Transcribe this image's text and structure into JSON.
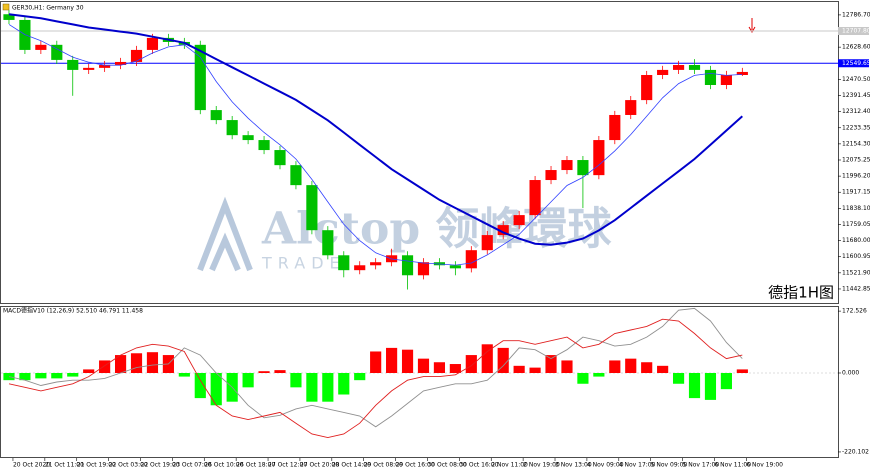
{
  "chart_data": [
    {
      "type": "candlestick",
      "title": "GER30,H1: Germany 30",
      "annotation": "德指1H图",
      "annotation_color": "#e00000",
      "watermark": [
        "Alctop 领峰環球",
        "TRADE"
      ],
      "up_color": "#ff0000",
      "down_color": "#00c000",
      "x": [
        2,
        6,
        10,
        14,
        18,
        22,
        26,
        30,
        34,
        38,
        42,
        46,
        50,
        54,
        58,
        62,
        66,
        70,
        74,
        78,
        82,
        86,
        90,
        94,
        98,
        102,
        106,
        110,
        114,
        118,
        122,
        126,
        130,
        134,
        138,
        142,
        146,
        150,
        154,
        158,
        162,
        166,
        170,
        174,
        178,
        182,
        186
      ],
      "open": [
        12790,
        12762,
        12615,
        12640,
        12566,
        12517,
        12527,
        12541,
        12556,
        12615,
        12674,
        12654,
        12640,
        12320,
        12271,
        12197,
        12173,
        12124,
        12050,
        11952,
        11731,
        11608,
        11535,
        11559,
        11574,
        11608,
        11510,
        11574,
        11559,
        11544,
        11633,
        11707,
        11756,
        11805,
        11977,
        12026,
        12075,
        12001,
        12173,
        12296,
        12369,
        12492,
        12517,
        12541,
        12517,
        12443,
        12492
      ],
      "high": [
        12810,
        12782,
        12660,
        12660,
        12586,
        12547,
        12561,
        12576,
        12635,
        12694,
        12694,
        12674,
        12660,
        12340,
        12291,
        12217,
        12193,
        12144,
        12070,
        11972,
        11751,
        11628,
        11579,
        11594,
        11640,
        11628,
        11594,
        11594,
        11579,
        11653,
        11727,
        11776,
        11825,
        11997,
        12046,
        12095,
        12095,
        12193,
        12316,
        12389,
        12512,
        12537,
        12561,
        12570,
        12537,
        12512,
        12527
      ],
      "low": [
        12742,
        12595,
        12595,
        12546,
        12390,
        12497,
        12507,
        12521,
        12536,
        12595,
        12634,
        12620,
        12300,
        12251,
        12177,
        12153,
        12104,
        12030,
        11932,
        11711,
        11588,
        11500,
        11515,
        11539,
        11554,
        11440,
        11490,
        11539,
        11510,
        11524,
        11613,
        11687,
        11736,
        11785,
        11957,
        12006,
        11840,
        11981,
        12153,
        12276,
        12349,
        12472,
        12497,
        12497,
        12423,
        12423,
        12487
      ],
      "close": [
        12762,
        12615,
        12640,
        12566,
        12517,
        12527,
        12541,
        12556,
        12615,
        12674,
        12654,
        12640,
        12320,
        12271,
        12197,
        12173,
        12124,
        12050,
        11952,
        11731,
        11608,
        11535,
        11559,
        11574,
        11608,
        11510,
        11574,
        11559,
        11544,
        11633,
        11707,
        11756,
        11805,
        11977,
        12026,
        12075,
        12001,
        12173,
        12296,
        12369,
        12492,
        12517,
        12541,
        12517,
        12443,
        12492,
        12507
      ],
      "ma_lines": [
        {
          "color": "#3040ff",
          "width": 0.8,
          "values": [
            12740,
            12690,
            12660,
            12620,
            12580,
            12555,
            12540,
            12540,
            12560,
            12600,
            12630,
            12640,
            12580,
            12460,
            12360,
            12280,
            12210,
            12150,
            12080,
            11980,
            11870,
            11760,
            11680,
            11620,
            11590,
            11580,
            11570,
            11565,
            11560,
            11570,
            11610,
            11660,
            11710,
            11790,
            11870,
            11950,
            11990,
            12050,
            12120,
            12200,
            12290,
            12380,
            12450,
            12490,
            12500,
            12490,
            12495
          ]
        },
        {
          "color": "#0000cc",
          "width": 2,
          "values": [
            12790,
            12780,
            12770,
            12755,
            12740,
            12725,
            12715,
            12705,
            12695,
            12680,
            12665,
            12650,
            12610,
            12570,
            12530,
            12490,
            12450,
            12410,
            12370,
            12320,
            12270,
            12210,
            12150,
            12090,
            12030,
            11980,
            11930,
            11880,
            11840,
            11800,
            11760,
            11720,
            11690,
            11665,
            11660,
            11670,
            11690,
            11730,
            11780,
            11840,
            11900,
            11960,
            12020,
            12080,
            12150,
            12220,
            12290
          ]
        }
      ],
      "hlines": [
        {
          "value": 12707.8,
          "label": "12707.80",
          "color": "#c8c8c8"
        },
        {
          "value": 12549.65,
          "label": "12549.65",
          "color": "#0000ff"
        }
      ],
      "xlim": [
        0,
        210
      ],
      "ylim": [
        11374,
        12850
      ],
      "xticks": [
        {
          "value": 3,
          "label": "20 Oct 2020"
        },
        {
          "value": 11,
          "label": "21 Oct 11:00"
        },
        {
          "value": 19,
          "label": "21 Oct 19:00"
        },
        {
          "value": 27,
          "label": "22 Oct 03:00"
        },
        {
          "value": 35,
          "label": "22 Oct 19:00"
        },
        {
          "value": 43,
          "label": "23 Oct 07:00"
        },
        {
          "value": 51,
          "label": "26 Oct 10:00"
        },
        {
          "value": 59,
          "label": "26 Oct 18:00"
        },
        {
          "value": 67,
          "label": "27 Oct 12:00"
        },
        {
          "value": 75,
          "label": "27 Oct 20:00"
        },
        {
          "value": 83,
          "label": "28 Oct 14:00"
        },
        {
          "value": 91,
          "label": "29 Oct 08:00"
        },
        {
          "value": 99,
          "label": "29 Oct 16:00"
        },
        {
          "value": 107,
          "label": "30 Oct 08:00"
        },
        {
          "value": 115,
          "label": "30 Oct 16:00"
        },
        {
          "value": 123,
          "label": "2 Nov 11:00"
        },
        {
          "value": 131,
          "label": "2 Nov 19:00"
        },
        {
          "value": 139,
          "label": "3 Nov 13:00"
        },
        {
          "value": 147,
          "label": "4 Nov 09:00"
        },
        {
          "value": 155,
          "label": "4 Nov 17:00"
        },
        {
          "value": 163,
          "label": "5 Nov 09:00"
        },
        {
          "value": 171,
          "label": "5 Nov 17:00"
        },
        {
          "value": 179,
          "label": "6 Nov 11:00"
        },
        {
          "value": 187,
          "label": "6 Nov 19:00"
        }
      ],
      "yticks": [
        {
          "value": 12786.7,
          "label": "12786.70"
        },
        {
          "value": 12628.6,
          "label": "12628.60"
        },
        {
          "value": 12470.5,
          "label": "12470.50"
        },
        {
          "value": 12391.45,
          "label": "12391.45"
        },
        {
          "value": 12312.4,
          "label": "12312.40"
        },
        {
          "value": 12233.35,
          "label": "12233.35"
        },
        {
          "value": 12154.3,
          "label": "12154.30"
        },
        {
          "value": 12075.25,
          "label": "12075.25"
        },
        {
          "value": 11996.2,
          "label": "11996.20"
        },
        {
          "value": 11917.15,
          "label": "11917.15"
        },
        {
          "value": 11838.1,
          "label": "11838.10"
        },
        {
          "value": 11759.05,
          "label": "11759.05"
        },
        {
          "value": 11680,
          "label": "11680.00"
        },
        {
          "value": 11600.95,
          "label": "11600.95"
        },
        {
          "value": 11521.9,
          "label": "11521.90"
        },
        {
          "value": 11442.85,
          "label": "11442.85"
        }
      ]
    },
    {
      "type": "macd",
      "title": "MACD德指V10 (12,26,9) 52.510 46.791 11.458",
      "pos_color": "#ff0000",
      "neg_color": "#00ff00",
      "macd_color": "#e02020",
      "signal_color": "#909090",
      "hist": [
        -20,
        -20,
        -15,
        -15,
        -10,
        10,
        35,
        50,
        55,
        58,
        50,
        -10,
        -70,
        -90,
        -80,
        -40,
        5,
        8,
        -40,
        -80,
        -80,
        -60,
        -20,
        60,
        70,
        65,
        40,
        30,
        25,
        50,
        80,
        70,
        20,
        15,
        50,
        35,
        -30,
        -10,
        35,
        40,
        30,
        20,
        -30,
        -70,
        -75,
        -45,
        10
      ],
      "macd": [
        -30,
        -40,
        -50,
        -40,
        -30,
        -10,
        20,
        50,
        70,
        80,
        75,
        60,
        -20,
        -90,
        -120,
        -130,
        -120,
        -110,
        -140,
        -170,
        -180,
        -170,
        -140,
        -90,
        -50,
        -20,
        -10,
        -10,
        -5,
        20,
        60,
        90,
        90,
        80,
        90,
        100,
        70,
        80,
        110,
        120,
        130,
        150,
        145,
        110,
        70,
        40,
        50
      ],
      "signal": [
        -10,
        -20,
        -35,
        -25,
        -20,
        -20,
        -15,
        0,
        15,
        22,
        25,
        70,
        50,
        0,
        -40,
        -90,
        -125,
        -118,
        -100,
        -90,
        -100,
        -110,
        -120,
        -150,
        -120,
        -85,
        -50,
        -40,
        -30,
        -30,
        -20,
        20,
        70,
        65,
        40,
        65,
        100,
        90,
        75,
        80,
        100,
        130,
        175,
        180,
        145,
        85,
        40
      ],
      "ylim": [
        -237,
        184
      ],
      "yticks": [
        172.526,
        {
          "value": 0,
          "label": "0.000"
        },
        -220.102
      ]
    }
  ]
}
